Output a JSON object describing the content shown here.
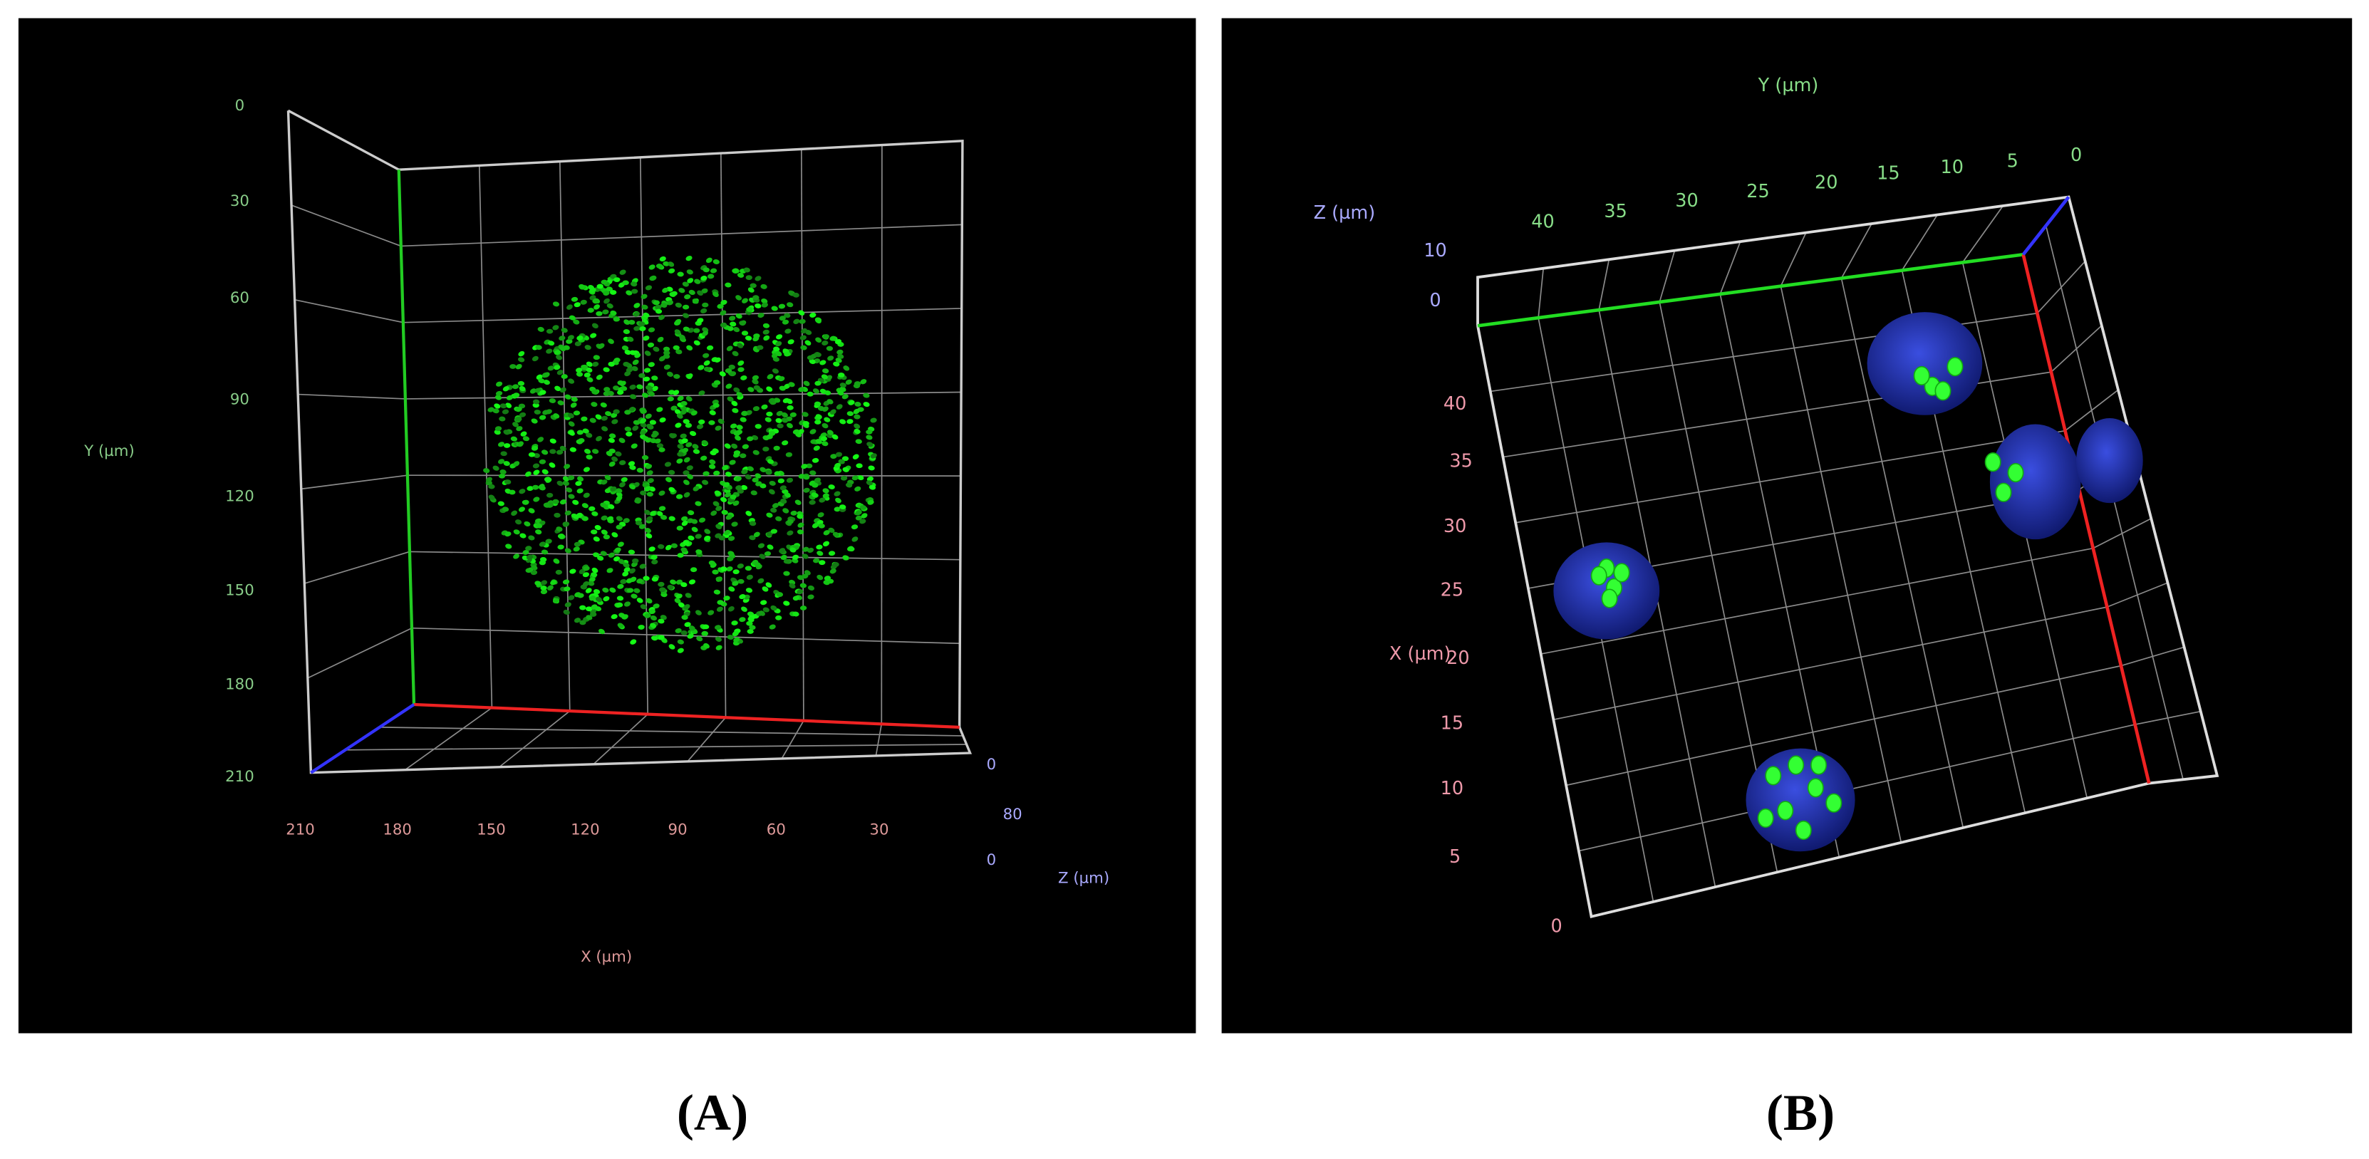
{
  "panels": [
    {
      "caption": "(A)",
      "y_label": "Y (µm)",
      "y_ticks": [
        0,
        30,
        60,
        90,
        120,
        150,
        180,
        210
      ],
      "x_label": "X (µm)",
      "x_ticks": [
        210,
        180,
        150,
        120,
        90,
        60,
        30
      ],
      "z_label": "Z (µm)",
      "z_ticks": [
        0,
        80,
        0
      ]
    },
    {
      "caption": "(B)",
      "y_label": "Y (µm)",
      "y_ticks": [
        40,
        35,
        30,
        25,
        20,
        15,
        10,
        5,
        0
      ],
      "x_label": "X (µm)",
      "x_ticks": [
        40,
        35,
        30,
        25,
        20,
        15,
        10,
        5,
        0
      ],
      "z_label": "Z (µm)",
      "z_ticks": [
        10,
        0
      ]
    }
  ]
}
